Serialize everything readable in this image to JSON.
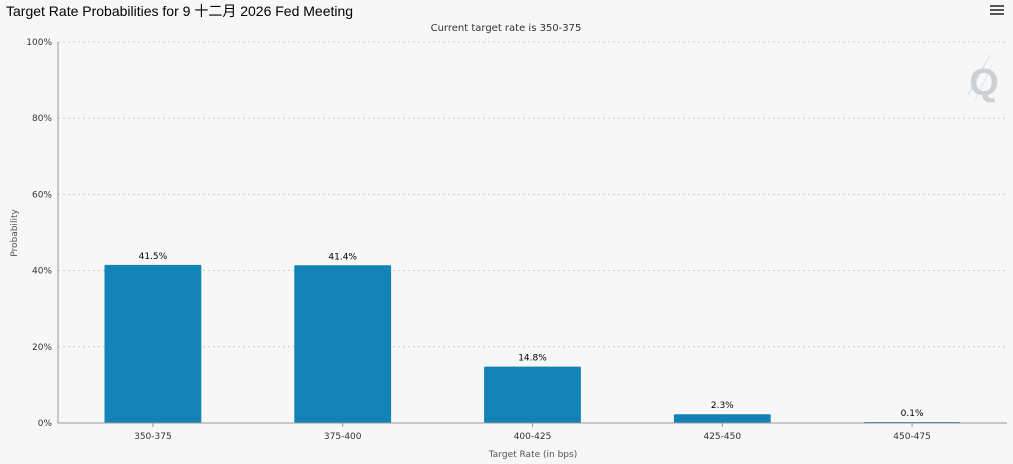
{
  "header": {
    "title": "Target Rate Probabilities for 9 十二月 2026 Fed Meeting",
    "menu_icon": "hamburger-menu-icon"
  },
  "watermark": {
    "letter": "Q"
  },
  "colors": {
    "bar": "#1282b7",
    "background": "#f7f7f7",
    "grid": "#cccccc",
    "axis": "#999999"
  },
  "chart_data": {
    "type": "bar",
    "title": "",
    "subtitle": "Current target rate is 350-375",
    "xlabel": "Target Rate (in bps)",
    "ylabel": "Probability",
    "categories": [
      "350-375",
      "375-400",
      "400-425",
      "425-450",
      "450-475"
    ],
    "values": [
      41.5,
      41.4,
      14.8,
      2.3,
      0.1
    ],
    "data_labels": [
      "41.5%",
      "41.4%",
      "14.8%",
      "2.3%",
      "0.1%"
    ],
    "ylim": [
      0,
      100
    ],
    "yticks": [
      0,
      20,
      40,
      60,
      80,
      100
    ],
    "ytick_labels": [
      "0%",
      "20%",
      "40%",
      "60%",
      "80%",
      "100%"
    ],
    "grid": true,
    "legend": "none"
  }
}
